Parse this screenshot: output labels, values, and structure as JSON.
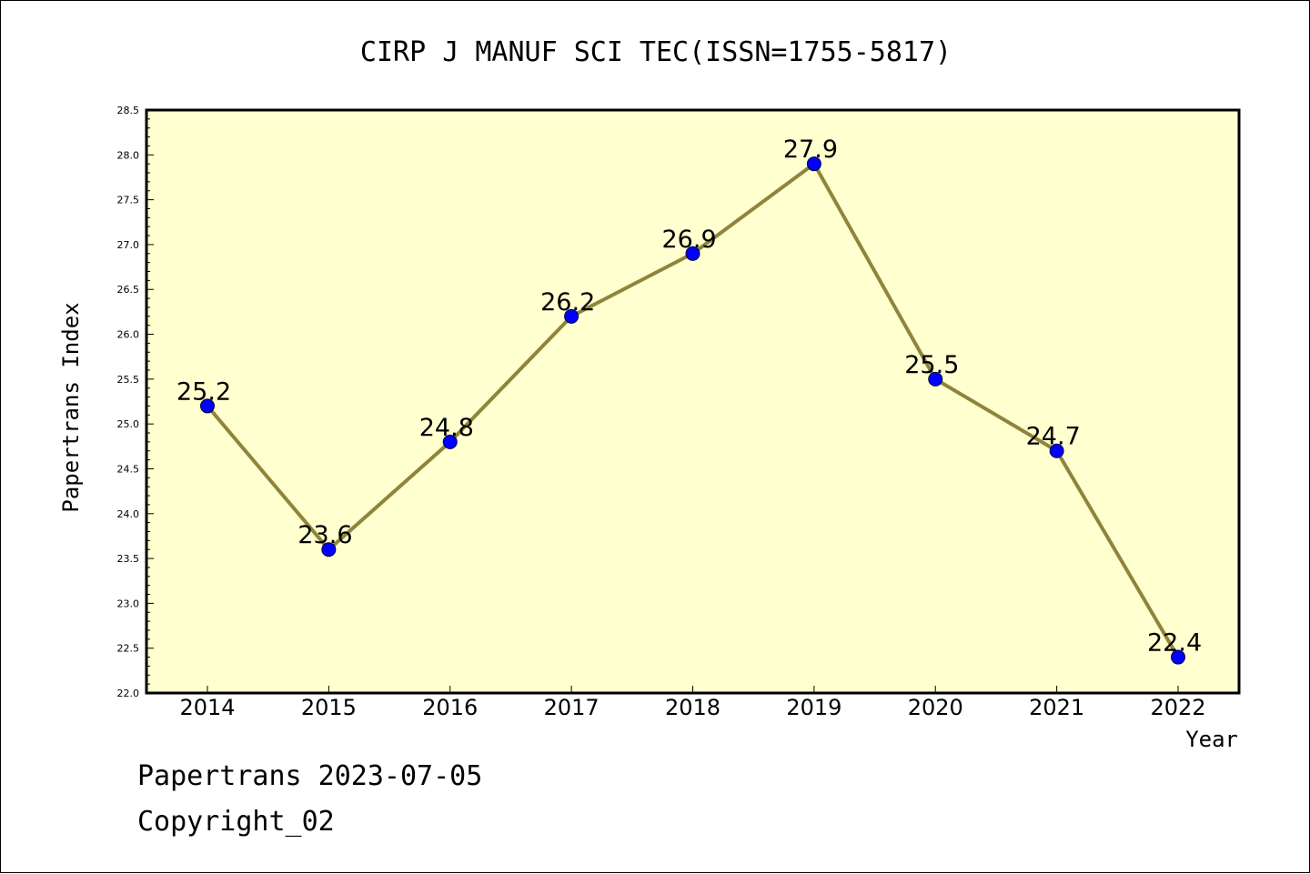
{
  "chart_data": {
    "type": "line",
    "title": "CIRP J MANUF SCI TEC(ISSN=1755-5817)",
    "xlabel": "Year",
    "ylabel": "Papertrans Index",
    "x": [
      "2014",
      "2015",
      "2016",
      "2017",
      "2018",
      "2019",
      "2020",
      "2021",
      "2022"
    ],
    "series": [
      {
        "values": [
          25.2,
          23.6,
          24.8,
          26.2,
          26.9,
          27.9,
          25.5,
          24.7,
          22.4
        ]
      }
    ],
    "ylim": [
      22.0,
      28.5
    ],
    "yticks": [
      "22.0",
      "22.5",
      "23.0",
      "23.5",
      "24.0",
      "24.5",
      "25.0",
      "25.5",
      "26.0",
      "26.5",
      "27.0",
      "27.5",
      "28.0",
      "28.5"
    ],
    "data_labels": [
      "25.2",
      "23.6",
      "24.8",
      "26.2",
      "26.9",
      "27.9",
      "25.5",
      "24.7",
      "22.4"
    ],
    "grid": false,
    "colors": {
      "plot_background": "#ffffd0",
      "line": "#8f843a",
      "marker": "#0000ff"
    }
  },
  "footer": {
    "line1": "Papertrans 2023-07-05",
    "line2": "Copyright_02"
  }
}
